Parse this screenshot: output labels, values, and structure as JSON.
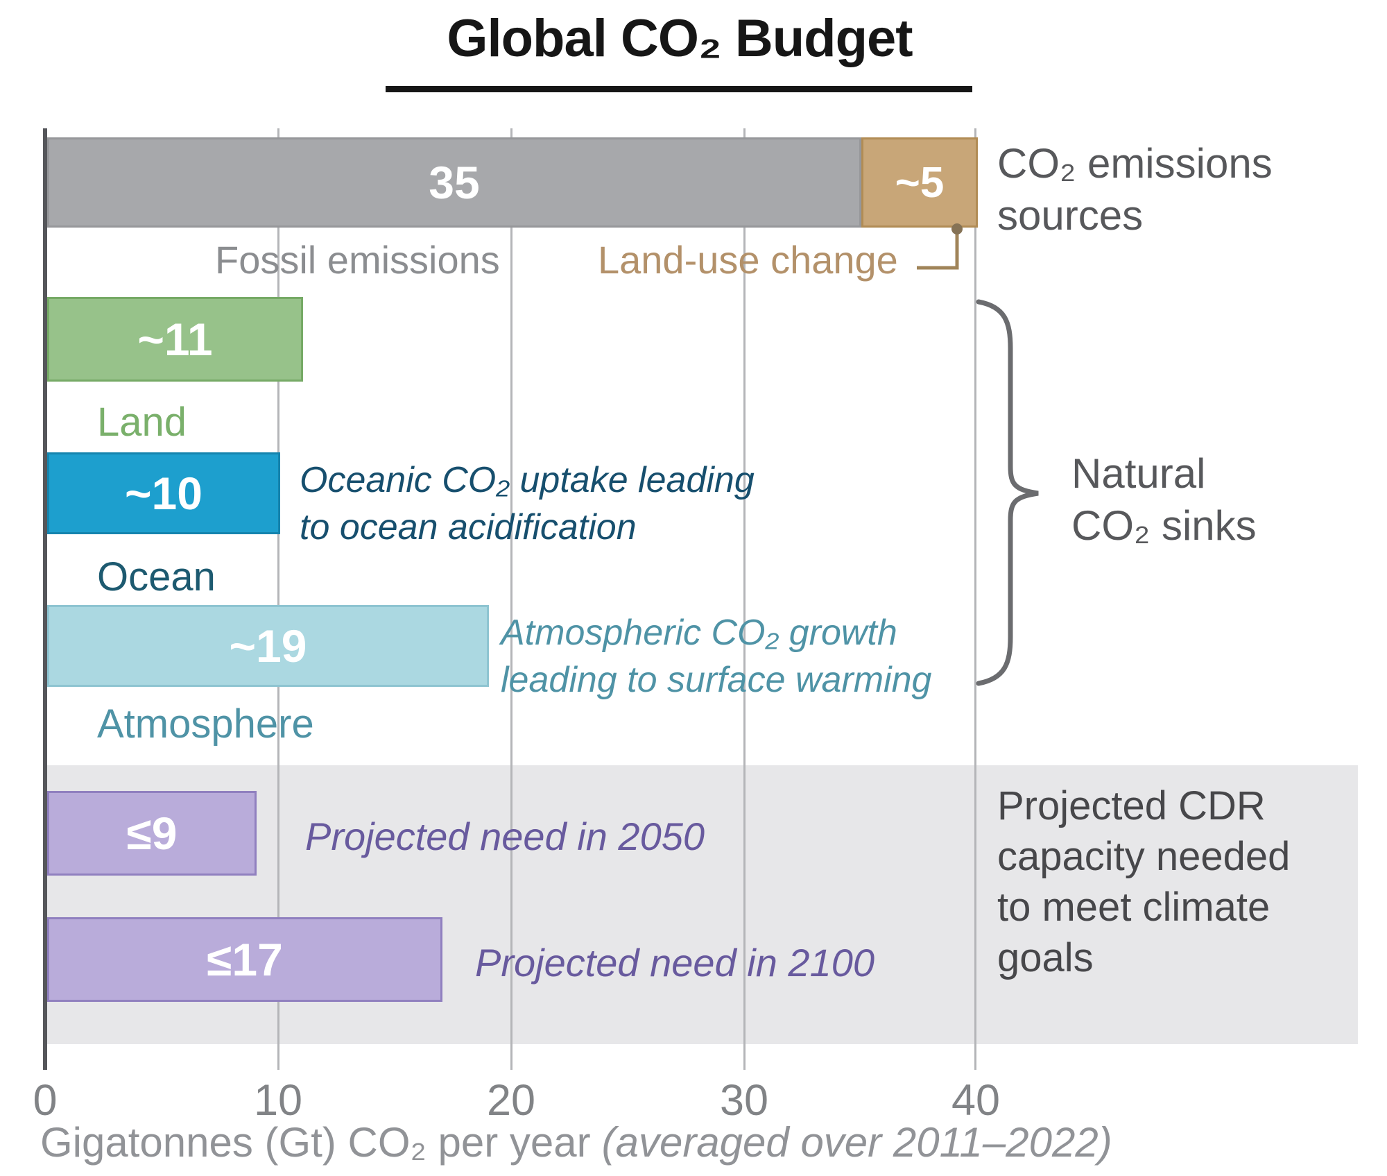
{
  "title": "Global CO₂ Budget",
  "chart_data": {
    "type": "bar",
    "orientation": "horizontal",
    "title": "Global CO₂ Budget",
    "xlabel": "Gigatonnes (Gt) CO₂ per year (averaged over 2011–2022)",
    "xlim": [
      0,
      40
    ],
    "x_ticks": [
      "0",
      "10",
      "20",
      "30",
      "40"
    ],
    "unit": "Gt CO₂ per year",
    "bars": [
      {
        "name": "Fossil emissions",
        "label": "35",
        "value": 35,
        "group": "CO₂ emissions sources",
        "color": "#a7a8ab"
      },
      {
        "name": "Land-use change",
        "label": "~5",
        "value": 5,
        "group": "CO₂ emissions sources",
        "color": "#c8a678"
      },
      {
        "name": "Land",
        "label": "~11",
        "value": 11,
        "group": "Natural CO₂ sinks",
        "color": "#97c28a"
      },
      {
        "name": "Ocean",
        "label": "~10",
        "value": 10,
        "group": "Natural CO₂ sinks",
        "color": "#1d9fce"
      },
      {
        "name": "Atmosphere",
        "label": "~19",
        "value": 19,
        "group": "Natural CO₂ sinks",
        "color": "#abd8e1"
      },
      {
        "name": "Projected need in 2050",
        "label": "≤9",
        "value": 9,
        "group": "Projected CDR capacity needed to meet climate goals",
        "color": "#b9acda"
      },
      {
        "name": "Projected need in 2100",
        "label": "≤17",
        "value": 17,
        "group": "Projected CDR capacity needed to meet climate goals",
        "color": "#b9acda"
      }
    ],
    "annotations": [
      "Oceanic CO₂ uptake leading to ocean acidification",
      "Atmospheric CO₂ growth leading to surface warming"
    ]
  },
  "labels": {
    "sources_line1": "CO₂ emissions",
    "sources_line2": "sources",
    "sinks_line1": "Natural",
    "sinks_line2": "CO₂ sinks",
    "cdr_line1": "Projected CDR",
    "cdr_line2": "capacity needed",
    "cdr_line3": "to meet climate",
    "cdr_line4": "goals",
    "ocean_note_line1": "Oceanic CO₂ uptake leading",
    "ocean_note_line2": "to ocean acidification",
    "atmos_note_line1": "Atmospheric CO₂ growth",
    "atmos_note_line2": "leading to surface warming",
    "xlabel_main": "Gigatonnes (Gt) CO₂ per year",
    "xlabel_note": "(averaged over 2011–2022)"
  }
}
